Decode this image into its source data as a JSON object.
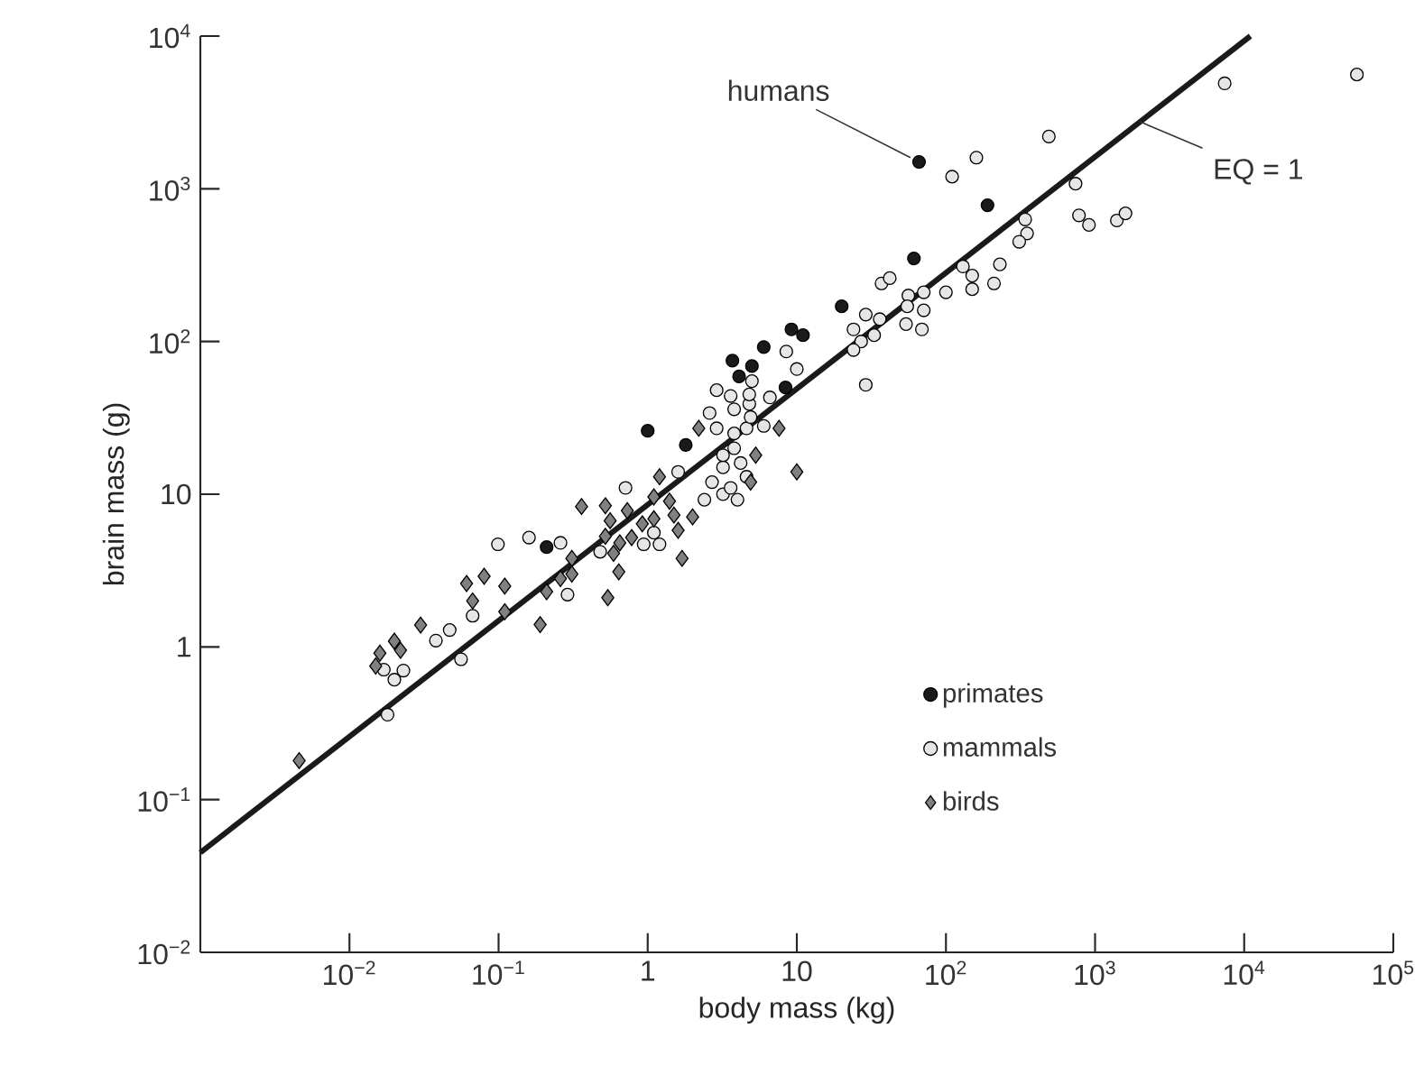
{
  "chart_data": {
    "type": "scatter",
    "xlabel": "body mass (kg)",
    "ylabel": "brain mass (g)",
    "log": "xy",
    "xlim": [
      0.001,
      100000
    ],
    "ylim": [
      0.01,
      10000
    ],
    "xticks": [
      {
        "value": 0.01,
        "label": "10$^{−2}$"
      },
      {
        "value": 0.1,
        "label": "10$^{−1}$"
      },
      1,
      10,
      {
        "value": 100,
        "label": "10$^{2}$"
      },
      {
        "value": 1000,
        "label": "10$^{3}$"
      },
      {
        "value": 10000,
        "label": "10$^{4}$"
      },
      {
        "value": 100000,
        "label": "10$^{5}$"
      }
    ],
    "yticks": [
      {
        "value": 0.01,
        "label": "10$^{−2}$"
      },
      {
        "value": 0.1,
        "label": "10$^{−1}$"
      },
      1,
      10,
      {
        "value": 100,
        "label": "10$^{2}$"
      },
      {
        "value": 1000,
        "label": "10$^{3}$"
      },
      {
        "value": 10000,
        "label": "10$^{4}$"
      }
    ],
    "legend": "bottom right",
    "annotations": [
      {
        "text": "humans",
        "x": 66,
        "y": 1500
      }
    ],
    "series": [
      {
        "name": "primates",
        "color": "#1a1a1a",
        "marker": "circle",
        "x": [
          0.21,
          1.0,
          1.8,
          3.7,
          5.0,
          4.1,
          6.0,
          9.2,
          11,
          8.4,
          20,
          66,
          190,
          61
        ],
        "values": [
          4.5,
          26,
          21,
          75,
          69,
          59,
          92,
          120,
          110,
          50,
          170,
          1500,
          780,
          350
        ]
      },
      {
        "name": "mammals",
        "color": "#e6e6e6",
        "marker": "circle",
        "x": [
          0.018,
          0.056,
          0.017,
          0.023,
          0.02,
          0.038,
          0.047,
          0.067,
          0.099,
          0.16,
          0.26,
          0.29,
          0.48,
          0.71,
          1.6,
          0.94,
          1.2,
          1.1,
          2.4,
          3.2,
          4.0,
          2.7,
          3.6,
          4.6,
          3.2,
          4.2,
          3.2,
          3.8,
          2.9,
          4.6,
          6.0,
          3.8,
          4.9,
          2.6,
          3.8,
          4.8,
          6.6,
          2.9,
          3.6,
          4.8,
          5.0,
          8.5,
          10,
          57000,
          7400,
          490,
          160,
          110,
          740,
          340,
          350,
          310,
          780,
          910,
          1400,
          1600,
          230,
          130,
          150,
          210,
          150,
          100,
          71,
          56,
          37,
          42,
          55,
          71,
          54,
          69,
          29,
          36,
          24,
          33,
          27,
          24,
          29
        ],
        "values": [
          0.36,
          0.83,
          0.71,
          0.7,
          0.61,
          1.1,
          1.29,
          1.6,
          4.7,
          5.2,
          4.8,
          2.2,
          4.2,
          11,
          14,
          4.7,
          4.7,
          5.6,
          9.2,
          10,
          9.2,
          12,
          11,
          13,
          15,
          16,
          18,
          20,
          27,
          27,
          28,
          25,
          32,
          34,
          36,
          39,
          43,
          48,
          44,
          45,
          55,
          86,
          66,
          5600,
          4900,
          2200,
          1600,
          1200,
          1080,
          630,
          510,
          450,
          670,
          580,
          620,
          690,
          320,
          310,
          270,
          240,
          220,
          210,
          210,
          200,
          240,
          260,
          170,
          160,
          130,
          120,
          150,
          140,
          120,
          110,
          100,
          88,
          52
        ]
      },
      {
        "name": "birds",
        "color": "#808080",
        "marker": "diamond",
        "x": [
          0.0046,
          0.016,
          0.02,
          0.022,
          0.015,
          0.03,
          0.061,
          0.08,
          0.067,
          0.11,
          0.11,
          0.19,
          0.21,
          0.26,
          0.31,
          0.31,
          0.36,
          0.52,
          0.56,
          0.52,
          0.65,
          0.59,
          0.64,
          0.54,
          0.73,
          7.6,
          2.2,
          10,
          5.3,
          4.9,
          1.2,
          1.1,
          1.4,
          2.0,
          1.5,
          1.6,
          1.7,
          1.1,
          0.92,
          0.78
        ],
        "values": [
          0.18,
          0.91,
          1.09,
          0.95,
          0.75,
          1.39,
          2.6,
          2.9,
          2.0,
          2.5,
          1.7,
          1.4,
          2.3,
          2.8,
          3.8,
          3.0,
          8.3,
          8.4,
          6.7,
          5.3,
          4.8,
          4.1,
          3.1,
          2.1,
          7.8,
          27,
          27,
          14,
          18,
          12,
          13,
          9.6,
          9.0,
          7.1,
          7.3,
          5.8,
          3.8,
          6.9,
          6.4,
          5.2
        ]
      },
      {
        "name": "EQ = 1",
        "type": "line",
        "color": "#1a1a1a",
        "marker": "none",
        "x": [
          0.001,
          11000
        ],
        "values": [
          0.045,
          10000
        ]
      }
    ]
  }
}
